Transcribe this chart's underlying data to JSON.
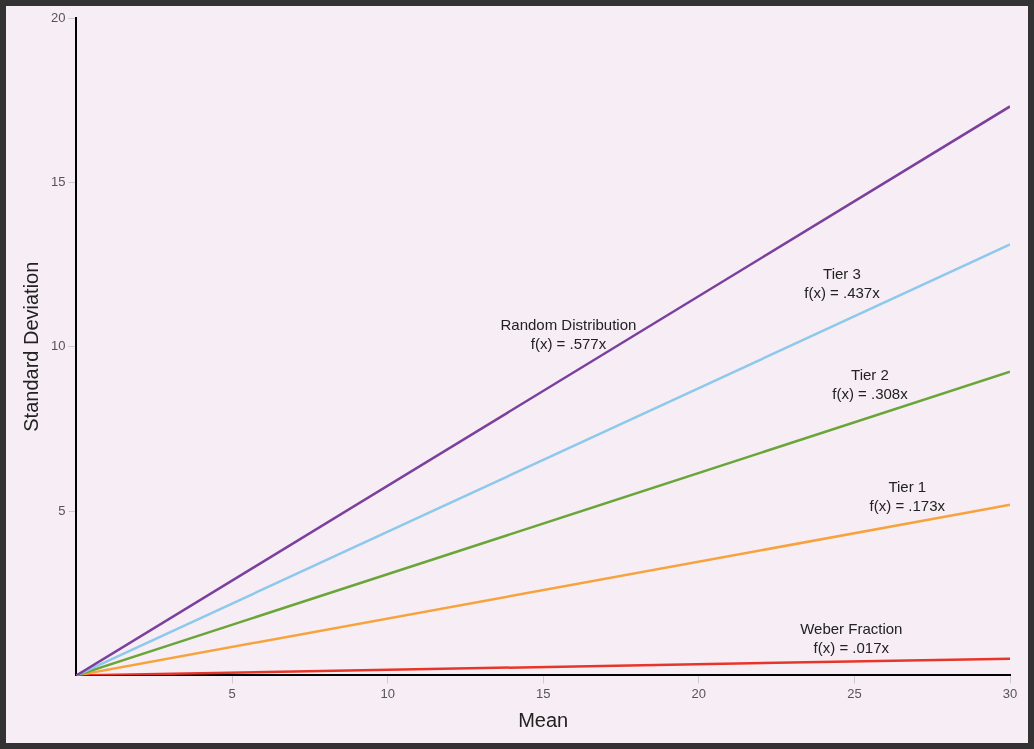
{
  "chart_data": {
    "type": "line",
    "xlabel": "Mean",
    "ylabel": "Standard Deviation",
    "x": [
      0,
      30
    ],
    "series": [
      {
        "name": "Random Distribution\nf(x) = .577x",
        "color": "#7b3f9e",
        "values": [
          0,
          17.31
        ]
      },
      {
        "name": "Tier 3\nf(x) = .437x",
        "color": "#8ec8ec",
        "values": [
          0,
          13.11
        ]
      },
      {
        "name": "Tier 2\nf(x) = .308x",
        "color": "#6aa53a",
        "values": [
          0,
          9.24
        ]
      },
      {
        "name": "Tier 1\nf(x) = .173x",
        "color": "#f7a23c",
        "values": [
          0,
          5.19
        ]
      },
      {
        "name": "Weber Fraction\nf(x) = .017x",
        "color": "#e8352a",
        "values": [
          0,
          0.51
        ]
      }
    ],
    "xlim": [
      0,
      30
    ],
    "xticks": [
      5,
      10,
      15,
      20,
      25,
      30
    ],
    "ylim": [
      0,
      20
    ],
    "yticks": [
      5,
      10,
      15,
      20
    ],
    "grid": false,
    "legend": false,
    "marker": "none",
    "line_style": "solid"
  }
}
